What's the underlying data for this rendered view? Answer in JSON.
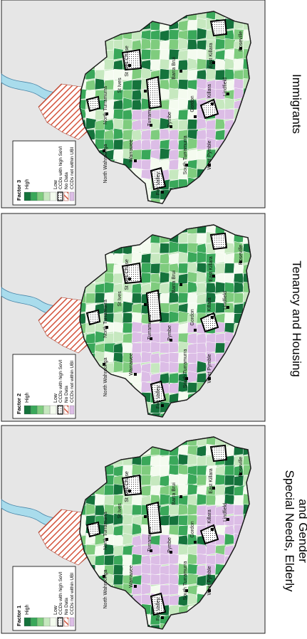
{
  "figure": {
    "panels": [
      {
        "id": "factor3",
        "title": "Immigrants",
        "legend_title": "Factor 3",
        "legend": [
          "Low",
          "High",
          "CCDs with high SoVI",
          "No Data",
          "CCDs not within UBI"
        ],
        "places": [
          "North Wahroonga",
          "North Turramurra",
          "St Ives Chase",
          "St Ives",
          "Barra Brui",
          "East Killara",
          "Roseville",
          "Lindfield",
          "Killara",
          "Gordon",
          "Pymbe",
          "Turramurra",
          "Warrawee",
          "South Turramurra",
          "West Pymble",
          "Fox Valley"
        ]
      },
      {
        "id": "factor2",
        "title": "Tenancy and Housing",
        "legend_title": "Factor 2",
        "legend": [
          "Low",
          "High",
          "CCDs with high SoVI",
          "No Data",
          "CCDs not within UBI"
        ],
        "places": [
          "North Wahroonga",
          "North Turramurra",
          "St Ives Chase",
          "St Ives",
          "Barra Brui",
          "East Killara",
          "Roseville",
          "Lindfield",
          "Killara",
          "Gordon",
          "Pymbe",
          "Turramurra",
          "Warrawee",
          "South Turramurra",
          "West Pymble",
          "Fox Valley"
        ]
      },
      {
        "id": "factor1",
        "title_lines": [
          "Special Needs, Elderly",
          "and Gender"
        ],
        "legend_title": "Factor 1",
        "legend": [
          "Low",
          "High",
          "CCDs with high SoVI",
          "No Data",
          "CCDs not within UBI"
        ],
        "places": [
          "North Wahroonga",
          "North Turramurra",
          "St Ives Chase",
          "St Ives",
          "Barra Brui",
          "East Killara",
          "Roseville",
          "Lindfield",
          "Killara",
          "Gordon",
          "Pymbe",
          "Turramurra",
          "Warrawee",
          "South Turramurra",
          "West Pymble",
          "Fox Valley"
        ]
      }
    ],
    "colors": {
      "class1": "#f4fbef",
      "class2": "#c6e8bf",
      "class3": "#7fcc7e",
      "class4": "#3aa85a",
      "class5": "#15733c",
      "outside_ubi": "#dcbde6",
      "no_data_hatch": "#d4543c",
      "water": "#a9dcec",
      "background": "#e6e6e6",
      "outline": "#1a1a1a"
    },
    "icons": [
      "place-marker-icon",
      "hatch-pattern-icon",
      "dotted-pattern-icon"
    ]
  }
}
